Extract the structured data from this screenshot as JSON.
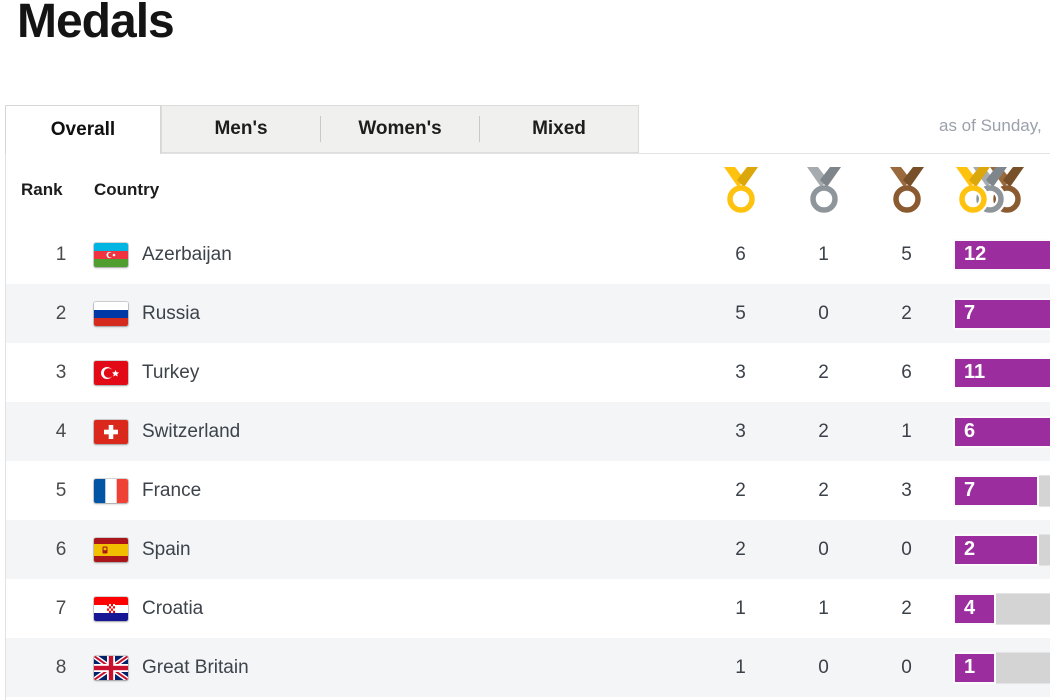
{
  "page": {
    "title": "Medals",
    "as_of": "as of Sunday,"
  },
  "tabs": [
    {
      "label": "Overall",
      "active": true
    },
    {
      "label": "Men's",
      "active": false
    },
    {
      "label": "Women's",
      "active": false
    },
    {
      "label": "Mixed",
      "active": false
    }
  ],
  "table": {
    "headers": {
      "rank": "Rank",
      "country": "Country"
    },
    "medal_column_icons": [
      "gold-medal-icon",
      "silver-medal-icon",
      "bronze-medal-icon",
      "total-medals-icon"
    ],
    "rows": [
      {
        "rank": "1",
        "country": "Azerbaijan",
        "flag": "az",
        "gold": 6,
        "silver": 1,
        "bronze": 5,
        "total": 12
      },
      {
        "rank": "2",
        "country": "Russia",
        "flag": "ru",
        "gold": 5,
        "silver": 0,
        "bronze": 2,
        "total": 7
      },
      {
        "rank": "3",
        "country": "Turkey",
        "flag": "tr",
        "gold": 3,
        "silver": 2,
        "bronze": 6,
        "total": 11
      },
      {
        "rank": "4",
        "country": "Switzerland",
        "flag": "ch",
        "gold": 3,
        "silver": 2,
        "bronze": 1,
        "total": 6
      },
      {
        "rank": "5",
        "country": "France",
        "flag": "fr",
        "gold": 2,
        "silver": 2,
        "bronze": 3,
        "total": 7
      },
      {
        "rank": "6",
        "country": "Spain",
        "flag": "es",
        "gold": 2,
        "silver": 0,
        "bronze": 0,
        "total": 2
      },
      {
        "rank": "7",
        "country": "Croatia",
        "flag": "hr",
        "gold": 1,
        "silver": 1,
        "bronze": 2,
        "total": 4
      },
      {
        "rank": "8",
        "country": "Great Britain",
        "flag": "gb",
        "gold": 1,
        "silver": 0,
        "bronze": 0,
        "total": 1
      }
    ]
  },
  "colors": {
    "gold": "#ffc20e",
    "silver": "#8e959b",
    "bronze": "#8a5a30",
    "bar_fill": "#9b2d9f",
    "bar_track": "#d4d4d4",
    "row_alt_background": "#f4f5f7"
  }
}
